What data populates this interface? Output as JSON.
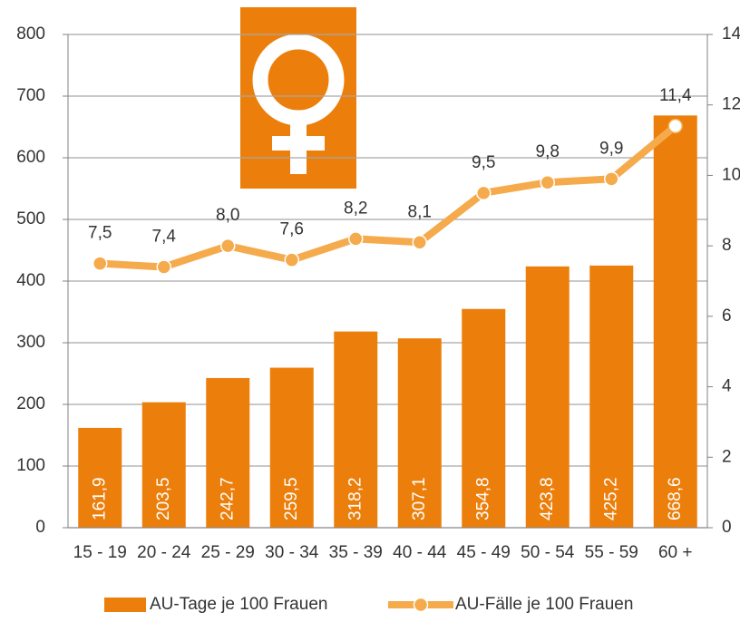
{
  "chart_data": {
    "type": "bar-line",
    "categories": [
      "15 - 19",
      "20 - 24",
      "25 - 29",
      "30 - 34",
      "35 - 39",
      "40 - 44",
      "45 - 49",
      "50 - 54",
      "55 - 59",
      "60 +"
    ],
    "series": [
      {
        "name": "AU-Tage je 100 Frauen",
        "type": "bar",
        "color": "#ec7f0c",
        "values": [
          161.9,
          203.5,
          242.7,
          259.5,
          318.2,
          307.1,
          354.8,
          423.8,
          425.2,
          668.6
        ],
        "value_labels": [
          "161,9",
          "203,5",
          "242,7",
          "259,5",
          "318,2",
          "307,1",
          "354,8",
          "423,8",
          "425,2",
          "668,6"
        ]
      },
      {
        "name": "AU-Fälle je 100 Frauen",
        "type": "line",
        "axis": "y2",
        "color": "#f5aa4c",
        "values": [
          7.5,
          7.4,
          8.0,
          7.6,
          8.2,
          8.1,
          9.5,
          9.8,
          9.9,
          11.4
        ],
        "value_labels": [
          "7,5",
          "7,4",
          "8,0",
          "7,6",
          "8,2",
          "8,1",
          "9,5",
          "9,8",
          "9,9",
          "11,4"
        ]
      }
    ],
    "ylim": [
      0,
      800
    ],
    "yticks": [
      0,
      100,
      200,
      300,
      400,
      500,
      600,
      700,
      800
    ],
    "y2lim": [
      0,
      14
    ],
    "y2ticks": [
      0,
      2,
      4,
      6,
      8,
      10,
      12,
      14
    ],
    "grid": true,
    "legend": "bottom"
  }
}
